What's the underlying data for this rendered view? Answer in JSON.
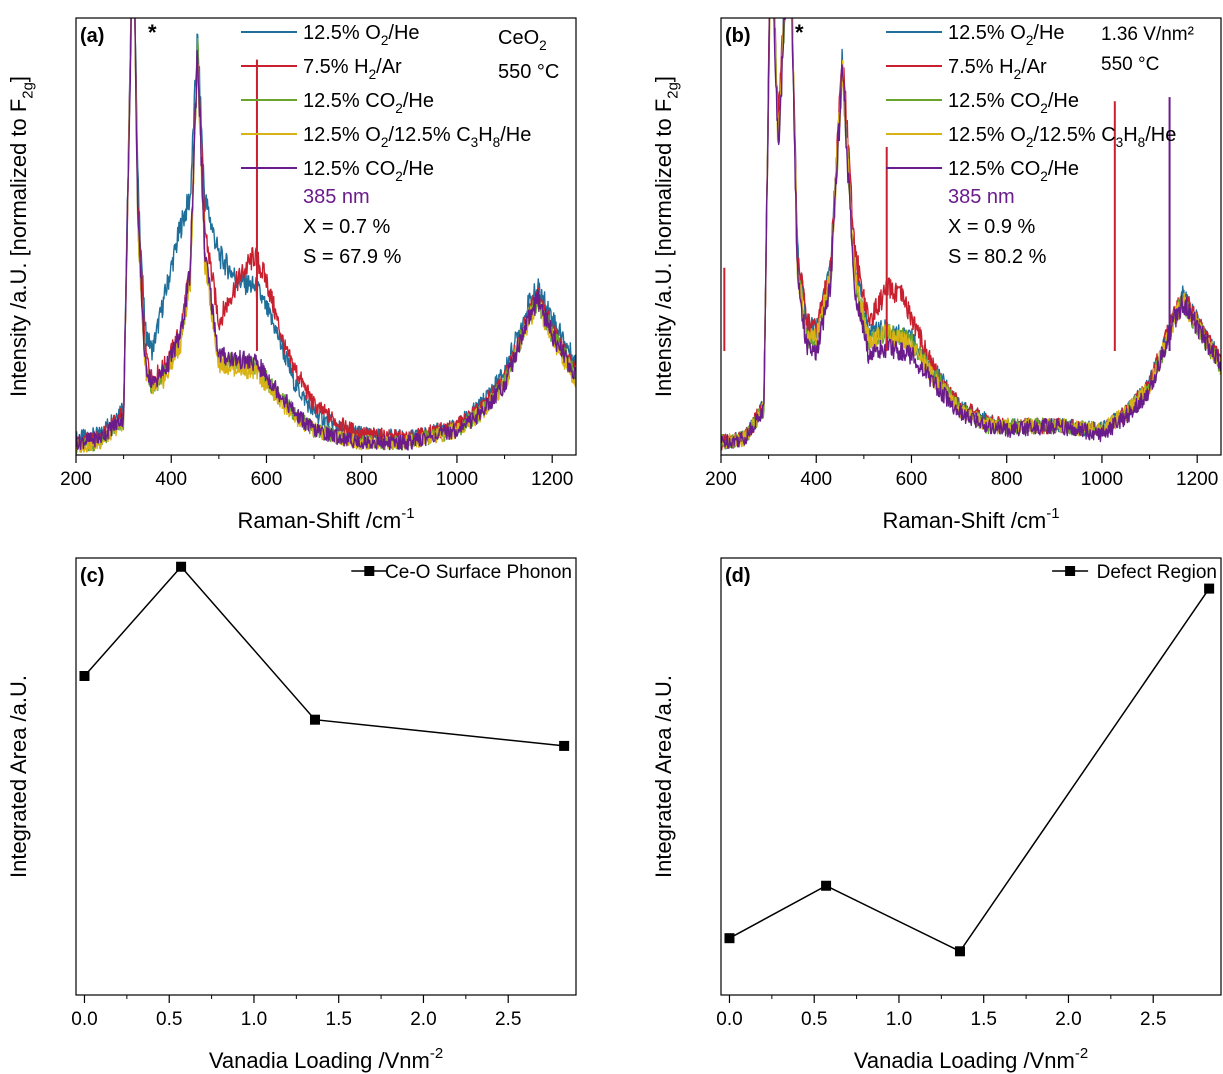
{
  "colors": {
    "o2": "#1f6f9a",
    "h2": "#c8202e",
    "co2": "#6aa42d",
    "o2c3h8": "#d9b316",
    "co2b": "#6a1b8c",
    "marker": "#000000"
  },
  "chart_data": [
    {
      "id": "a",
      "type": "line",
      "panel_label": "(a)",
      "xlabel": "Raman-Shift /cm",
      "xlabel_sup": "-1",
      "ylabel": "Intensity /a.U. [normalized to F",
      "ylabel_sub": "2g",
      "ylabel_end": "]",
      "xlim": [
        200,
        1250
      ],
      "ylim": [
        0,
        1.05
      ],
      "xticks": [
        "200",
        "400",
        "600",
        "800",
        "1000",
        "1200"
      ],
      "xtick_values": [
        200,
        400,
        600,
        800,
        1000,
        1200
      ],
      "star": "*",
      "annotations": [
        "CeO",
        "550 °C"
      ],
      "annotation_sub": "2",
      "legend": [
        {
          "pre": "12.5% O",
          "sub": "2",
          "post": "/He",
          "color": "o2"
        },
        {
          "pre": "7.5% H",
          "sub": "2",
          "post": "/Ar",
          "color": "h2"
        },
        {
          "pre": "12.5% CO",
          "sub": "2",
          "post": "/He",
          "color": "co2"
        },
        {
          "pre": "12.5% O",
          "sub": "2",
          "mid": "/12.5% C",
          "sub2": "3",
          "mid2": "H",
          "sub3": "8",
          "post": "/He",
          "color": "o2c3h8"
        },
        {
          "pre": "12.5% CO",
          "sub": "2",
          "post": "/He",
          "color": "co2b"
        }
      ],
      "info": [
        "385 nm",
        "X = 0.7 %",
        "S = 67.9 %"
      ],
      "series": [
        {
          "color": "o2",
          "x": [
            200,
            250,
            300,
            320,
            330,
            345,
            360,
            390,
            420,
            440,
            455,
            470,
            500,
            540,
            580,
            620,
            660,
            700,
            760,
            800,
            900,
            1000,
            1050,
            1100,
            1150,
            1170,
            1200,
            1250
          ],
          "y": [
            0.04,
            0.05,
            0.12,
            1.3,
            0.65,
            0.3,
            0.25,
            0.4,
            0.55,
            0.62,
            1.0,
            0.62,
            0.48,
            0.42,
            0.4,
            0.3,
            0.17,
            0.1,
            0.06,
            0.05,
            0.04,
            0.07,
            0.12,
            0.2,
            0.36,
            0.4,
            0.33,
            0.22
          ]
        },
        {
          "color": "h2",
          "x": [
            200,
            250,
            300,
            320,
            330,
            345,
            360,
            390,
            420,
            440,
            455,
            470,
            500,
            540,
            575,
            600,
            640,
            700,
            760,
            800,
            900,
            1000,
            1050,
            1100,
            1150,
            1170,
            1200,
            1250
          ],
          "y": [
            0.03,
            0.04,
            0.1,
            1.3,
            0.6,
            0.25,
            0.18,
            0.22,
            0.3,
            0.45,
            0.99,
            0.55,
            0.32,
            0.42,
            0.48,
            0.42,
            0.25,
            0.12,
            0.07,
            0.05,
            0.04,
            0.07,
            0.11,
            0.18,
            0.34,
            0.38,
            0.3,
            0.2
          ]
        },
        {
          "color": "co2",
          "x": [
            200,
            250,
            300,
            320,
            330,
            345,
            360,
            390,
            420,
            440,
            455,
            470,
            500,
            540,
            580,
            620,
            660,
            700,
            760,
            800,
            900,
            1000,
            1050,
            1100,
            1150,
            1170,
            1200,
            1250
          ],
          "y": [
            0.02,
            0.03,
            0.08,
            1.3,
            0.55,
            0.22,
            0.16,
            0.2,
            0.28,
            0.43,
            0.98,
            0.48,
            0.23,
            0.22,
            0.21,
            0.15,
            0.1,
            0.06,
            0.04,
            0.03,
            0.03,
            0.06,
            0.1,
            0.17,
            0.33,
            0.37,
            0.29,
            0.19
          ]
        },
        {
          "color": "o2c3h8",
          "x": [
            200,
            250,
            300,
            320,
            330,
            345,
            360,
            390,
            420,
            440,
            455,
            470,
            500,
            540,
            580,
            620,
            660,
            700,
            760,
            800,
            900,
            1000,
            1050,
            1100,
            1150,
            1170,
            1200,
            1250
          ],
          "y": [
            0.02,
            0.03,
            0.08,
            1.3,
            0.55,
            0.21,
            0.15,
            0.19,
            0.27,
            0.42,
            0.97,
            0.47,
            0.22,
            0.21,
            0.2,
            0.14,
            0.09,
            0.06,
            0.04,
            0.03,
            0.03,
            0.06,
            0.1,
            0.17,
            0.32,
            0.36,
            0.28,
            0.18
          ]
        },
        {
          "color": "co2b",
          "x": [
            200,
            250,
            300,
            320,
            330,
            345,
            360,
            390,
            420,
            440,
            455,
            470,
            500,
            540,
            580,
            620,
            660,
            700,
            760,
            800,
            900,
            1000,
            1050,
            1100,
            1150,
            1170,
            1200,
            1250
          ],
          "y": [
            0.03,
            0.04,
            0.09,
            1.3,
            0.56,
            0.22,
            0.17,
            0.21,
            0.29,
            0.44,
            0.98,
            0.49,
            0.24,
            0.23,
            0.22,
            0.16,
            0.1,
            0.06,
            0.04,
            0.03,
            0.03,
            0.06,
            0.1,
            0.17,
            0.33,
            0.37,
            0.29,
            0.19
          ]
        }
      ],
      "spikes": [
        {
          "color": "h2",
          "x": 580,
          "y": 0.95
        }
      ]
    },
    {
      "id": "b",
      "type": "line",
      "panel_label": "(b)",
      "xlabel": "Raman-Shift /cm",
      "xlabel_sup": "-1",
      "ylabel": "Intensity /a.U. [normalized to F",
      "ylabel_sub": "2g",
      "ylabel_end": "]",
      "xlim": [
        200,
        1250
      ],
      "ylim": [
        0,
        1.05
      ],
      "xticks": [
        "200",
        "400",
        "600",
        "800",
        "1000",
        "1200"
      ],
      "xtick_values": [
        200,
        400,
        600,
        800,
        1000,
        1200
      ],
      "star": "*",
      "annotations": [
        "1.36 V/nm²",
        "550 °C"
      ],
      "legend": [
        {
          "pre": "12.5% O",
          "sub": "2",
          "post": "/He",
          "color": "o2"
        },
        {
          "pre": "7.5% H",
          "sub": "2",
          "post": "/Ar",
          "color": "h2"
        },
        {
          "pre": "12.5% CO",
          "sub": "2",
          "post": "/He",
          "color": "co2"
        },
        {
          "pre": "12.5% O",
          "sub": "2",
          "mid": "/12.5% C",
          "sub2": "3",
          "mid2": "H",
          "sub3": "8",
          "post": "/He",
          "color": "o2c3h8"
        },
        {
          "pre": "12.5% CO",
          "sub": "2",
          "post": "/He",
          "color": "co2b"
        }
      ],
      "info": [
        "385 nm",
        "X = 0.9 %",
        "S = 80.2 %"
      ],
      "series": [
        {
          "color": "o2",
          "x": [
            200,
            250,
            290,
            305,
            320,
            345,
            360,
            380,
            400,
            430,
            455,
            480,
            510,
            550,
            600,
            650,
            700,
            760,
            800,
            900,
            1000,
            1050,
            1100,
            1150,
            1170,
            1200,
            1250
          ],
          "y": [
            0.03,
            0.04,
            0.12,
            1.3,
            0.8,
            1.3,
            0.5,
            0.32,
            0.3,
            0.45,
            0.95,
            0.45,
            0.3,
            0.3,
            0.28,
            0.2,
            0.12,
            0.08,
            0.07,
            0.07,
            0.06,
            0.1,
            0.17,
            0.33,
            0.38,
            0.32,
            0.22
          ]
        },
        {
          "color": "h2",
          "x": [
            200,
            250,
            290,
            305,
            320,
            345,
            360,
            380,
            400,
            430,
            455,
            480,
            510,
            550,
            580,
            600,
            650,
            700,
            760,
            800,
            900,
            1000,
            1050,
            1100,
            1150,
            1170,
            1200,
            1250
          ],
          "y": [
            0.03,
            0.04,
            0.12,
            1.3,
            0.8,
            1.3,
            0.5,
            0.32,
            0.3,
            0.45,
            0.96,
            0.5,
            0.32,
            0.4,
            0.38,
            0.33,
            0.2,
            0.12,
            0.08,
            0.07,
            0.07,
            0.06,
            0.1,
            0.17,
            0.33,
            0.38,
            0.32,
            0.22
          ]
        },
        {
          "color": "co2",
          "x": [
            200,
            250,
            290,
            305,
            320,
            345,
            360,
            380,
            400,
            430,
            455,
            480,
            510,
            550,
            600,
            650,
            700,
            760,
            800,
            900,
            1000,
            1050,
            1100,
            1150,
            1170,
            1200,
            1250
          ],
          "y": [
            0.03,
            0.04,
            0.11,
            1.3,
            0.75,
            1.3,
            0.45,
            0.28,
            0.27,
            0.42,
            0.93,
            0.42,
            0.27,
            0.3,
            0.27,
            0.19,
            0.11,
            0.07,
            0.07,
            0.07,
            0.06,
            0.1,
            0.16,
            0.32,
            0.37,
            0.31,
            0.21
          ]
        },
        {
          "color": "o2c3h8",
          "x": [
            200,
            250,
            290,
            305,
            320,
            345,
            360,
            380,
            400,
            430,
            455,
            480,
            510,
            550,
            600,
            650,
            700,
            760,
            800,
            900,
            1000,
            1050,
            1100,
            1150,
            1170,
            1200,
            1250
          ],
          "y": [
            0.03,
            0.04,
            0.11,
            1.3,
            0.75,
            1.3,
            0.45,
            0.28,
            0.28,
            0.43,
            0.93,
            0.43,
            0.28,
            0.29,
            0.26,
            0.18,
            0.11,
            0.07,
            0.07,
            0.07,
            0.06,
            0.1,
            0.16,
            0.32,
            0.37,
            0.31,
            0.21
          ]
        },
        {
          "color": "co2b",
          "x": [
            200,
            250,
            290,
            305,
            320,
            345,
            360,
            380,
            400,
            430,
            455,
            480,
            510,
            550,
            600,
            650,
            700,
            760,
            800,
            900,
            1000,
            1050,
            1100,
            1150,
            1170,
            1200,
            1250
          ],
          "y": [
            0.03,
            0.04,
            0.11,
            1.3,
            0.74,
            1.3,
            0.44,
            0.26,
            0.24,
            0.41,
            0.93,
            0.4,
            0.24,
            0.26,
            0.24,
            0.17,
            0.1,
            0.07,
            0.06,
            0.07,
            0.05,
            0.09,
            0.15,
            0.32,
            0.37,
            0.31,
            0.21
          ]
        }
      ],
      "spikes": [
        {
          "color": "h2",
          "x": 548,
          "y": 0.74
        },
        {
          "color": "h2",
          "x": 1027,
          "y": 0.85
        },
        {
          "color": "co2b",
          "x": 1142,
          "y": 0.86
        },
        {
          "color": "h2",
          "x": 207,
          "y": 0.45
        }
      ]
    },
    {
      "id": "c",
      "type": "line",
      "panel_label": "(c)",
      "xlabel": "Vanadia Loading /Vnm",
      "xlabel_sup": "-2",
      "ylabel": "Integrated Area /a.U.",
      "xlim": [
        -0.05,
        2.9
      ],
      "ylim": [
        0,
        1.0
      ],
      "xticks": [
        "0.0",
        "0.5",
        "1.0",
        "1.5",
        "2.0",
        "2.5"
      ],
      "xtick_values": [
        0,
        0.5,
        1.0,
        1.5,
        2.0,
        2.5
      ],
      "legend": [
        {
          "text": "Ce-O Surface Phonon",
          "color": "marker"
        }
      ],
      "series": [
        {
          "name": "Ce-O Surface Phonon",
          "color": "marker",
          "x": [
            0,
            0.57,
            1.36,
            2.83
          ],
          "y": [
            0.73,
            0.98,
            0.63,
            0.57
          ]
        }
      ]
    },
    {
      "id": "d",
      "type": "line",
      "panel_label": "(d)",
      "xlabel": "Vanadia Loading /Vnm",
      "xlabel_sup": "-2",
      "ylabel": "Integrated Area /a.U.",
      "xlim": [
        -0.05,
        2.9
      ],
      "ylim": [
        0,
        1.0
      ],
      "xticks": [
        "0.0",
        "0.5",
        "1.0",
        "1.5",
        "2.0",
        "2.5"
      ],
      "xtick_values": [
        0,
        0.5,
        1.0,
        1.5,
        2.0,
        2.5
      ],
      "legend": [
        {
          "text": "Defect Region",
          "color": "marker"
        }
      ],
      "series": [
        {
          "name": "Defect Region",
          "color": "marker",
          "x": [
            0,
            0.57,
            1.36,
            2.83
          ],
          "y": [
            0.13,
            0.25,
            0.1,
            0.93
          ]
        }
      ]
    }
  ]
}
